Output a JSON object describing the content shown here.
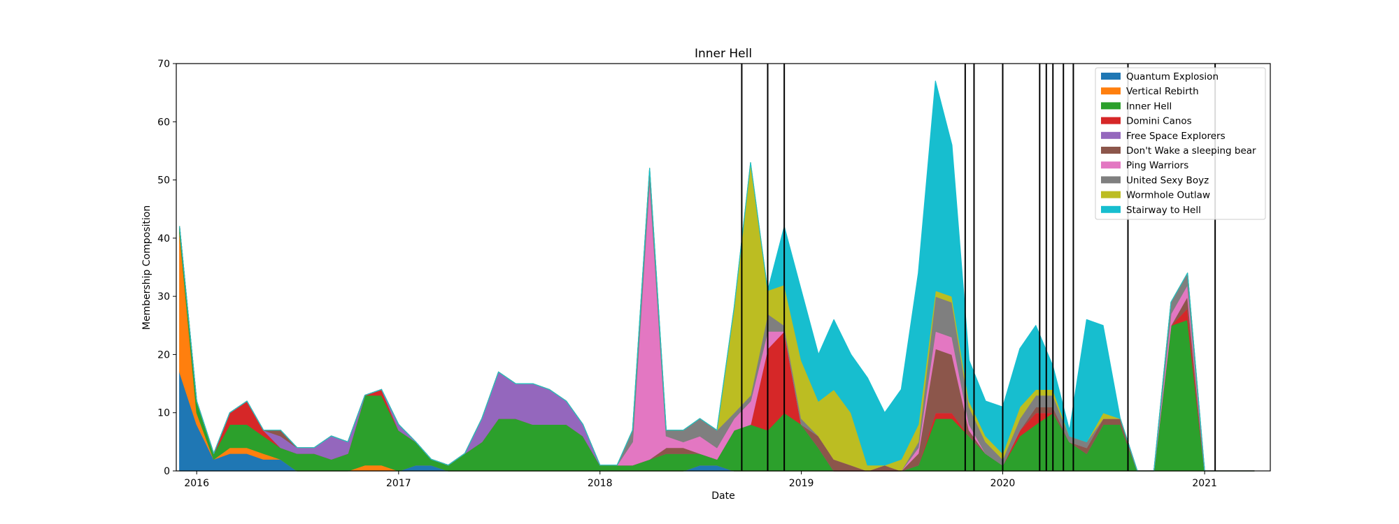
{
  "chart_data": {
    "type": "area",
    "stacked": true,
    "title": "Inner Hell",
    "xlabel": "Date",
    "ylabel": "Membership Composition",
    "xlim": [
      "2015-11-25",
      "2021-04-30"
    ],
    "ylim": [
      0,
      70
    ],
    "x_ticks": [
      "2016-01-01",
      "2017-01-01",
      "2018-01-01",
      "2019-01-01",
      "2020-01-01",
      "2021-01-01"
    ],
    "x_tick_labels": [
      "2016",
      "2017",
      "2018",
      "2019",
      "2020",
      "2021"
    ],
    "y_ticks": [
      0,
      10,
      20,
      30,
      40,
      50,
      60,
      70
    ],
    "grid": false,
    "legend_position": "top-right",
    "event_lines": [
      "2018-09-15",
      "2018-11-01",
      "2018-12-01",
      "2019-10-25",
      "2019-11-10",
      "2020-01-01",
      "2020-03-08",
      "2020-03-20",
      "2020-04-01",
      "2020-04-20",
      "2020-05-08",
      "2020-08-15",
      "2021-01-20"
    ],
    "x": [
      "2015-12-01",
      "2016-01-01",
      "2016-02-01",
      "2016-03-01",
      "2016-04-01",
      "2016-05-01",
      "2016-06-01",
      "2016-07-01",
      "2016-08-01",
      "2016-09-01",
      "2016-10-01",
      "2016-11-01",
      "2016-12-01",
      "2017-01-01",
      "2017-02-01",
      "2017-03-01",
      "2017-04-01",
      "2017-05-01",
      "2017-06-01",
      "2017-07-01",
      "2017-08-01",
      "2017-09-01",
      "2017-10-01",
      "2017-11-01",
      "2017-12-01",
      "2018-01-01",
      "2018-02-01",
      "2018-03-01",
      "2018-04-01",
      "2018-05-01",
      "2018-06-01",
      "2018-07-01",
      "2018-08-01",
      "2018-09-01",
      "2018-10-01",
      "2018-11-01",
      "2018-12-01",
      "2019-01-01",
      "2019-02-01",
      "2019-03-01",
      "2019-04-01",
      "2019-05-01",
      "2019-06-01",
      "2019-07-01",
      "2019-08-01",
      "2019-09-01",
      "2019-10-01",
      "2019-11-01",
      "2019-12-01",
      "2020-01-01",
      "2020-02-01",
      "2020-03-01",
      "2020-04-01",
      "2020-05-01",
      "2020-06-01",
      "2020-07-01",
      "2020-08-01",
      "2020-09-01",
      "2020-10-01",
      "2020-11-01",
      "2020-12-01",
      "2021-01-01",
      "2021-02-01",
      "2021-03-01",
      "2021-04-01"
    ],
    "series": [
      {
        "name": "Quantum Explosion",
        "color": "#1f77b4",
        "values": [
          17,
          8,
          2,
          3,
          3,
          2,
          2,
          0,
          0,
          0,
          0,
          0,
          0,
          0,
          1,
          1,
          0,
          0,
          0,
          0,
          0,
          0,
          0,
          0,
          0,
          0,
          0,
          0,
          0,
          0,
          0,
          1,
          1,
          0,
          0,
          0,
          0,
          0,
          0,
          0,
          0,
          0,
          0,
          0,
          0,
          0,
          0,
          0,
          0,
          0,
          0,
          0,
          0,
          0,
          0,
          0,
          0,
          0,
          0,
          0,
          0,
          0,
          0,
          0,
          0
        ]
      },
      {
        "name": "Vertical Rebirth",
        "color": "#ff7f0e",
        "values": [
          24,
          2,
          0,
          1,
          1,
          1,
          0,
          0,
          0,
          0,
          0,
          1,
          1,
          0,
          0,
          0,
          0,
          0,
          0,
          0,
          0,
          0,
          0,
          0,
          0,
          0,
          0,
          0,
          0,
          0,
          0,
          0,
          0,
          0,
          0,
          0,
          0,
          0,
          0,
          0,
          0,
          0,
          0,
          0,
          0,
          0,
          0,
          0,
          0,
          0,
          0,
          0,
          0,
          0,
          0,
          0,
          0,
          0,
          0,
          0,
          0,
          0,
          0,
          0,
          0
        ]
      },
      {
        "name": "Inner Hell",
        "color": "#2ca02c",
        "values": [
          1,
          2,
          1,
          4,
          4,
          3,
          2,
          3,
          3,
          2,
          3,
          12,
          12,
          7,
          4,
          1,
          1,
          3,
          5,
          9,
          9,
          8,
          8,
          8,
          6,
          1,
          1,
          1,
          2,
          3,
          3,
          2,
          1,
          7,
          8,
          7,
          10,
          8,
          4,
          0,
          0,
          0,
          0,
          0,
          1,
          9,
          9,
          6,
          3,
          1,
          6,
          8,
          10,
          5,
          3,
          8,
          8,
          0,
          0,
          25,
          26,
          0,
          0,
          0,
          0
        ]
      },
      {
        "name": "Domini Canos",
        "color": "#d62728",
        "values": [
          0,
          0,
          0,
          2,
          4,
          1,
          0,
          0,
          0,
          0,
          0,
          0,
          1,
          0,
          0,
          0,
          0,
          0,
          0,
          0,
          0,
          0,
          0,
          0,
          0,
          0,
          0,
          0,
          0,
          0,
          0,
          0,
          0,
          0,
          0,
          14,
          14,
          0,
          0,
          0,
          0,
          0,
          0,
          0,
          0,
          1,
          1,
          0,
          0,
          0,
          1,
          2,
          0,
          0,
          0,
          0,
          0,
          0,
          0,
          0,
          2,
          0,
          0,
          0,
          0
        ]
      },
      {
        "name": "Free Space Explorers",
        "color": "#9467bd",
        "values": [
          0,
          0,
          0,
          0,
          0,
          0,
          2,
          1,
          1,
          4,
          2,
          0,
          0,
          1,
          0,
          0,
          0,
          0,
          4,
          8,
          6,
          7,
          6,
          4,
          2,
          0,
          0,
          0,
          0,
          0,
          0,
          0,
          0,
          0,
          0,
          0,
          0,
          0,
          0,
          0,
          0,
          0,
          0,
          0,
          0,
          0,
          0,
          0,
          0,
          0,
          0,
          0,
          0,
          0,
          0,
          0,
          0,
          0,
          0,
          0,
          0,
          0,
          0,
          0,
          0
        ]
      },
      {
        "name": "Don't Wake a sleeping bear",
        "color": "#8c564b",
        "values": [
          0,
          0,
          0,
          0,
          0,
          0,
          1,
          0,
          0,
          0,
          0,
          0,
          0,
          0,
          0,
          0,
          0,
          0,
          0,
          0,
          0,
          0,
          0,
          0,
          0,
          0,
          0,
          0,
          0,
          1,
          1,
          0,
          0,
          0,
          0,
          0,
          0,
          0,
          2,
          2,
          1,
          0,
          1,
          0,
          2,
          11,
          10,
          1,
          0,
          0,
          0,
          1,
          1,
          0,
          1,
          1,
          1,
          0,
          0,
          0,
          2,
          0,
          0,
          0,
          0
        ]
      },
      {
        "name": "Ping Warriors",
        "color": "#e377c2",
        "values": [
          0,
          0,
          0,
          0,
          0,
          0,
          0,
          0,
          0,
          0,
          0,
          0,
          0,
          0,
          0,
          0,
          0,
          0,
          0,
          0,
          0,
          0,
          0,
          0,
          0,
          0,
          0,
          4,
          48,
          2,
          1,
          3,
          2,
          2,
          4,
          3,
          0,
          0,
          0,
          0,
          0,
          0,
          0,
          0,
          1,
          3,
          3,
          1,
          0,
          0,
          0,
          0,
          0,
          0,
          0,
          0,
          0,
          0,
          0,
          2,
          2,
          0,
          0,
          0,
          0
        ]
      },
      {
        "name": "United Sexy Boyz",
        "color": "#7f7f7f",
        "values": [
          0,
          0,
          0,
          0,
          0,
          0,
          0,
          0,
          0,
          0,
          0,
          0,
          0,
          0,
          0,
          0,
          0,
          0,
          0,
          0,
          0,
          0,
          0,
          0,
          0,
          0,
          0,
          2,
          2,
          1,
          2,
          3,
          3,
          1,
          1,
          3,
          1,
          1,
          0,
          0,
          0,
          0,
          0,
          0,
          1,
          6,
          6,
          3,
          2,
          1,
          2,
          2,
          2,
          1,
          1,
          0,
          0,
          0,
          0,
          2,
          2,
          0,
          0,
          0,
          0
        ]
      },
      {
        "name": "Wormhole Outlaw",
        "color": "#bcbd22",
        "values": [
          0,
          0,
          0,
          0,
          0,
          0,
          0,
          0,
          0,
          0,
          0,
          0,
          0,
          0,
          0,
          0,
          0,
          0,
          0,
          0,
          0,
          0,
          0,
          0,
          0,
          0,
          0,
          0,
          0,
          0,
          0,
          0,
          0,
          18,
          40,
          4,
          7,
          10,
          6,
          12,
          9,
          1,
          0,
          2,
          3,
          1,
          1,
          1,
          1,
          1,
          2,
          1,
          1,
          0,
          0,
          1,
          0,
          0,
          0,
          0,
          0,
          0,
          0,
          0,
          0
        ]
      },
      {
        "name": "Stairway to Hell",
        "color": "#17becf",
        "values": [
          0,
          0,
          0,
          0,
          0,
          0,
          0,
          0,
          0,
          0,
          0,
          0,
          0,
          0,
          0,
          0,
          0,
          0,
          0,
          0,
          0,
          0,
          0,
          0,
          0,
          0,
          0,
          0,
          0,
          0,
          0,
          0,
          0,
          0,
          0,
          0,
          10,
          12,
          8,
          12,
          10,
          15,
          9,
          12,
          26,
          36,
          26,
          7,
          6,
          8,
          10,
          11,
          4,
          1,
          21,
          15,
          0,
          0,
          0,
          0,
          0,
          0,
          0,
          0,
          0
        ]
      }
    ]
  }
}
